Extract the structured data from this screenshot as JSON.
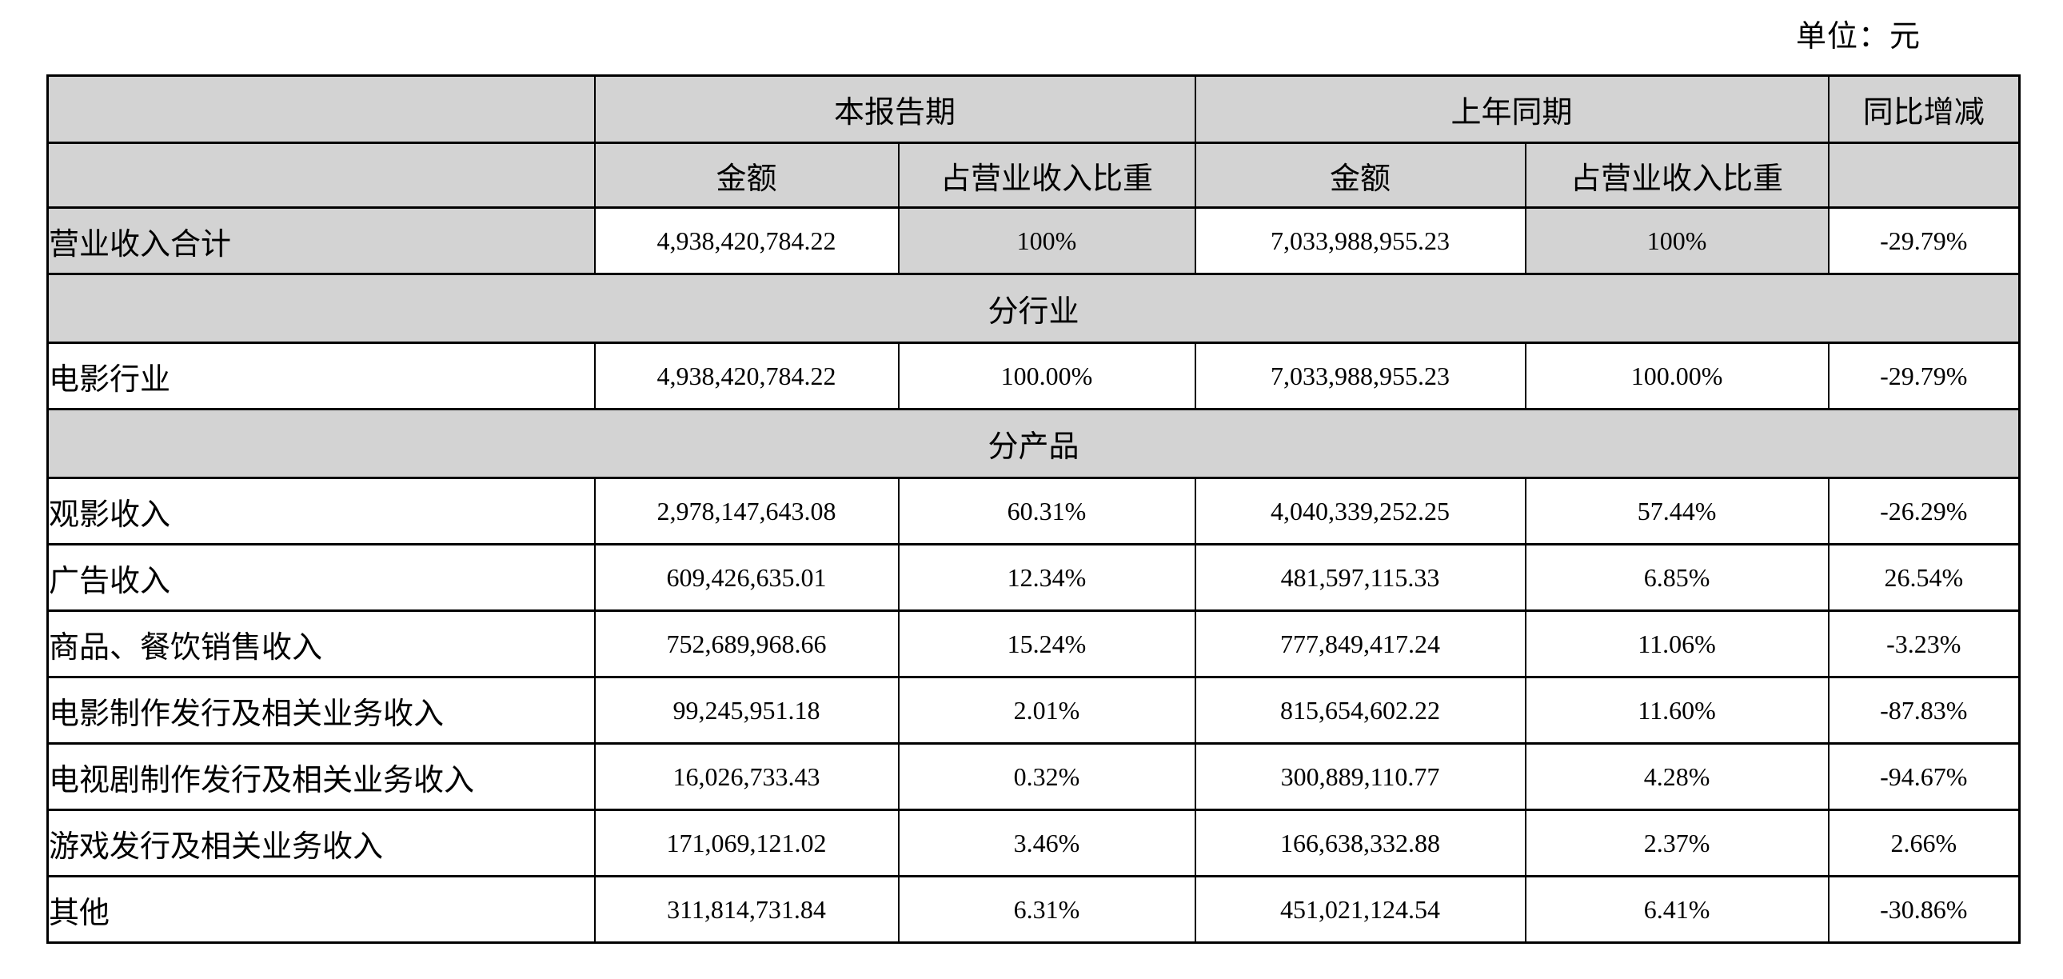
{
  "page": {
    "unit_label": "单位：元"
  },
  "table": {
    "header": {
      "current_period": "本报告期",
      "prior_period": "上年同期",
      "yoy_change": "同比增减",
      "amount": "金额",
      "ratio": "占营业收入比重"
    },
    "rows": [
      {
        "type": "total",
        "label": "营业收入合计",
        "cur_amount": "4,938,420,784.22",
        "cur_ratio": "100%",
        "prior_amount": "7,033,988,955.23",
        "prior_ratio": "100%",
        "yoy": "-29.79%"
      },
      {
        "type": "section",
        "label": "分行业"
      },
      {
        "type": "data",
        "label": "电影行业",
        "cur_amount": "4,938,420,784.22",
        "cur_ratio": "100.00%",
        "prior_amount": "7,033,988,955.23",
        "prior_ratio": "100.00%",
        "yoy": "-29.79%"
      },
      {
        "type": "section",
        "label": "分产品"
      },
      {
        "type": "data",
        "label": "观影收入",
        "cur_amount": "2,978,147,643.08",
        "cur_ratio": "60.31%",
        "prior_amount": "4,040,339,252.25",
        "prior_ratio": "57.44%",
        "yoy": "-26.29%"
      },
      {
        "type": "data",
        "label": "广告收入",
        "cur_amount": "609,426,635.01",
        "cur_ratio": "12.34%",
        "prior_amount": "481,597,115.33",
        "prior_ratio": "6.85%",
        "yoy": "26.54%"
      },
      {
        "type": "data",
        "label": "商品、餐饮销售收入",
        "cur_amount": "752,689,968.66",
        "cur_ratio": "15.24%",
        "prior_amount": "777,849,417.24",
        "prior_ratio": "11.06%",
        "yoy": "-3.23%"
      },
      {
        "type": "data",
        "label": "电影制作发行及相关业务收入",
        "cur_amount": "99,245,951.18",
        "cur_ratio": "2.01%",
        "prior_amount": "815,654,602.22",
        "prior_ratio": "11.60%",
        "yoy": "-87.83%"
      },
      {
        "type": "data",
        "label": "电视剧制作发行及相关业务收入",
        "cur_amount": "16,026,733.43",
        "cur_ratio": "0.32%",
        "prior_amount": "300,889,110.77",
        "prior_ratio": "4.28%",
        "yoy": "-94.67%"
      },
      {
        "type": "data",
        "label": "游戏发行及相关业务收入",
        "cur_amount": "171,069,121.02",
        "cur_ratio": "3.46%",
        "prior_amount": "166,638,332.88",
        "prior_ratio": "2.37%",
        "yoy": "2.66%"
      },
      {
        "type": "data",
        "label": "其他",
        "cur_amount": "311,814,731.84",
        "cur_ratio": "6.31%",
        "prior_amount": "451,021,124.54",
        "prior_ratio": "6.41%",
        "yoy": "-30.86%"
      }
    ]
  }
}
